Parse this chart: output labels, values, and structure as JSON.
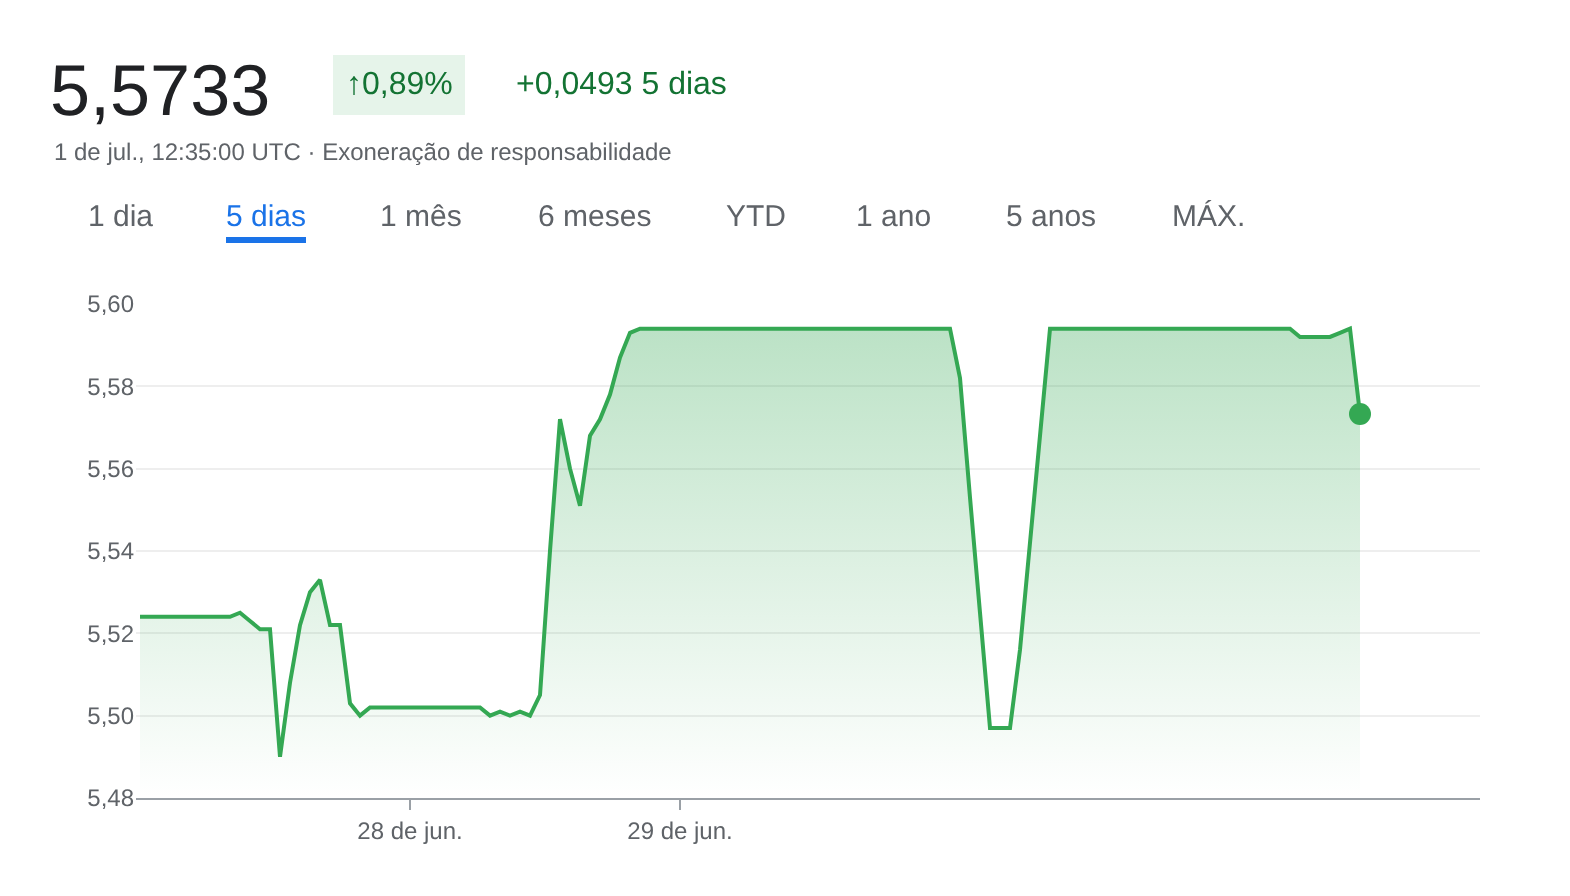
{
  "chart_data": {
    "type": "area",
    "title": "5,5733",
    "subtitle": "1 de jul., 12:35:00 UTC · Exoneração de responsabilidade",
    "annotations": [
      "↑0,89%",
      "+0,0493 5 dias",
      "1 dia",
      "5 dias",
      "1 mês",
      "6 meses",
      "YTD",
      "1 ano",
      "5 anos",
      "MÁX."
    ],
    "categories": [
      null,
      null,
      null,
      null,
      null,
      null,
      null,
      null,
      null,
      null,
      null,
      null,
      null,
      null,
      null,
      null,
      null,
      null,
      null,
      null,
      null,
      null,
      null,
      null,
      null,
      null,
      null,
      "28 de jun.",
      null,
      null,
      null,
      null,
      null,
      null,
      null,
      null,
      null,
      null,
      null,
      null,
      null,
      null,
      null,
      null,
      null,
      null,
      null,
      null,
      null,
      null,
      null,
      null,
      null,
      null,
      "29 de jun.",
      null,
      null,
      null,
      null,
      null,
      null,
      null,
      null,
      null,
      null,
      null,
      null,
      null,
      null,
      null,
      null,
      null,
      null,
      null,
      null,
      null,
      null,
      null,
      null,
      null,
      null,
      null,
      null,
      null,
      null,
      null,
      null,
      null,
      null,
      null,
      null,
      null,
      null,
      null,
      null,
      null,
      null,
      null,
      null,
      null,
      null,
      null,
      null,
      null,
      null,
      null,
      null,
      null,
      null,
      null,
      null,
      null,
      null,
      null,
      null,
      null,
      null,
      null,
      null,
      null,
      null,
      null,
      null,
      null,
      null,
      null,
      null,
      null,
      null,
      null,
      null,
      null,
      null,
      null,
      null
    ],
    "series": [
      {
        "color": "#34a853",
        "values": [
          5.524,
          5.524,
          5.524,
          5.524,
          5.524,
          5.524,
          5.524,
          5.524,
          5.524,
          5.524,
          5.525,
          5.523,
          5.521,
          5.521,
          5.49,
          5.508,
          5.522,
          5.53,
          5.533,
          5.522,
          5.522,
          5.503,
          5.5,
          5.502,
          5.502,
          5.502,
          5.502,
          5.502,
          5.502,
          5.502,
          5.502,
          5.502,
          5.502,
          5.502,
          5.502,
          5.5,
          5.501,
          5.5,
          5.501,
          5.5,
          5.505,
          5.54,
          5.572,
          5.56,
          5.551,
          5.568,
          5.572,
          5.578,
          5.587,
          5.593,
          5.594,
          5.594,
          5.594,
          5.594,
          5.594,
          5.594,
          5.594,
          5.594,
          5.594,
          5.594,
          5.594,
          5.594,
          5.594,
          5.594,
          5.594,
          5.594,
          5.594,
          5.594,
          5.594,
          5.594,
          5.594,
          5.594,
          5.594,
          5.594,
          5.594,
          5.594,
          5.594,
          5.594,
          5.594,
          5.594,
          5.594,
          5.594,
          5.582,
          5.553,
          5.525,
          5.497,
          5.497,
          5.497,
          5.516,
          5.542,
          5.568,
          5.594,
          5.594,
          5.594,
          5.594,
          5.594,
          5.594,
          5.594,
          5.594,
          5.594,
          5.594,
          5.594,
          5.594,
          5.594,
          5.594,
          5.594,
          5.594,
          5.594,
          5.594,
          5.594,
          5.594,
          5.594,
          5.594,
          5.594,
          5.594,
          5.594,
          5.592,
          5.592,
          5.592,
          5.592,
          5.593,
          5.594,
          5.5733,
          null,
          null,
          null,
          null,
          null,
          null,
          null,
          null,
          null,
          null,
          null,
          null
        ]
      }
    ],
    "ylim": [
      5.48,
      5.6
    ],
    "yticks": [
      {
        "value": 5.48,
        "label": "5,48"
      },
      {
        "value": 5.5,
        "label": "5,50"
      },
      {
        "value": 5.52,
        "label": "5,52"
      },
      {
        "value": 5.54,
        "label": "5,54"
      },
      {
        "value": 5.56,
        "label": "5,56"
      },
      {
        "value": 5.58,
        "label": "5,58"
      },
      {
        "value": 5.6,
        "label": "5,60"
      }
    ],
    "grid": "y"
  }
}
